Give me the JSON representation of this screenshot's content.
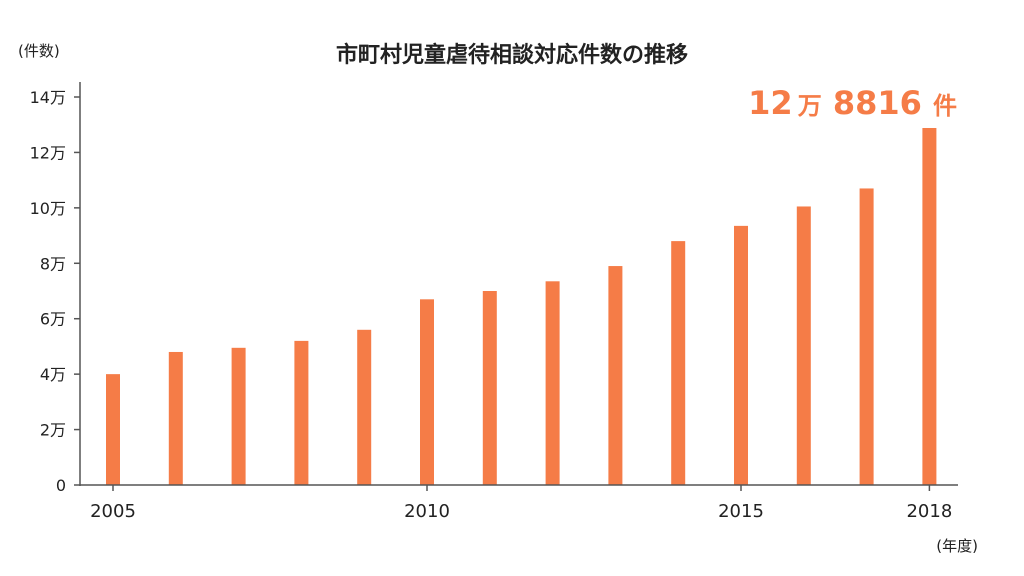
{
  "chart_data": {
    "type": "bar",
    "title": "市町村児童虐待相談対応件数の推移",
    "ylabel": "(件数)",
    "xlabel": "(年度)",
    "ylim": [
      0,
      140000
    ],
    "yticks": [
      {
        "value": 0,
        "label": "0"
      },
      {
        "value": 20000,
        "label": "2万"
      },
      {
        "value": 40000,
        "label": "4万"
      },
      {
        "value": 60000,
        "label": "6万"
      },
      {
        "value": 80000,
        "label": "8万"
      },
      {
        "value": 100000,
        "label": "10万"
      },
      {
        "value": 120000,
        "label": "12万"
      },
      {
        "value": 140000,
        "label": "14万"
      }
    ],
    "xtick_labels": [
      "2005",
      "2010",
      "2015",
      "2018"
    ],
    "categories": [
      "2005",
      "2006",
      "2007",
      "2008",
      "2009",
      "2010",
      "2011",
      "2012",
      "2013",
      "2014",
      "2015",
      "2016",
      "2017",
      "2018"
    ],
    "values": [
      40000,
      48000,
      49500,
      52000,
      56000,
      67000,
      70000,
      73500,
      79000,
      88000,
      93500,
      100500,
      107000,
      128816
    ],
    "grid": false,
    "bar_color": "#f57c47",
    "annotation": {
      "parts": [
        "12",
        "万",
        "8816",
        "件"
      ],
      "color": "#f57c47"
    }
  }
}
